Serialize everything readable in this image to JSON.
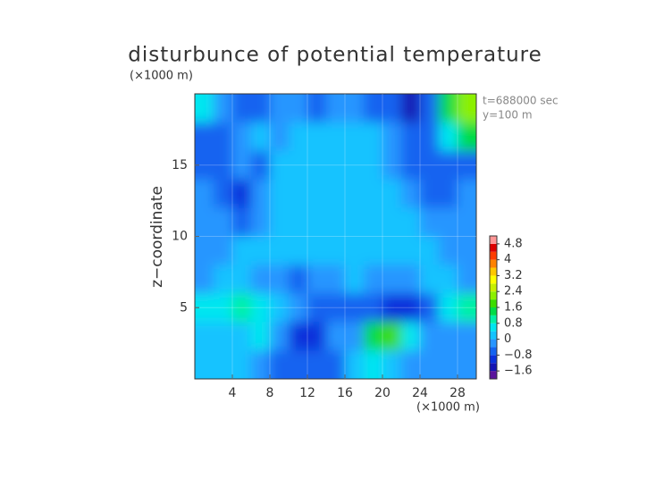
{
  "chart_data": {
    "type": "heatmap",
    "title": "disturbunce of potential temperature",
    "y_unit": "(×1000 m)",
    "x_unit": "(×1000 m)",
    "ylabel": "z−coordinate",
    "annotations": [
      "t=688000 sec",
      "y=100 m"
    ],
    "x": [
      1,
      3,
      5,
      7,
      9,
      11,
      13,
      15,
      17,
      19,
      21,
      23,
      25,
      27,
      29
    ],
    "y": [
      19,
      17,
      15,
      13,
      11,
      9,
      7,
      5,
      3,
      1
    ],
    "z": [
      [
        0.4,
        -0.2,
        -0.8,
        -0.6,
        -0.4,
        -0.4,
        -0.6,
        -0.4,
        -0.4,
        -0.6,
        -0.8,
        -1.4,
        -0.8,
        1.4,
        2.0
      ],
      [
        -0.6,
        -0.6,
        -0.3,
        0.0,
        -0.2,
        0.1,
        0.2,
        0.2,
        0.2,
        0.1,
        -0.4,
        -0.6,
        -0.7,
        0.6,
        1.2
      ],
      [
        -0.6,
        -0.5,
        -0.4,
        -0.6,
        0.1,
        0.1,
        0.1,
        0.1,
        0.1,
        0.0,
        -0.2,
        -0.6,
        -0.8,
        -0.8,
        -0.7
      ],
      [
        -0.4,
        -0.6,
        -0.9,
        -0.4,
        0.0,
        0.0,
        0.1,
        0.0,
        0.0,
        0.0,
        0.0,
        -0.2,
        -0.5,
        -0.5,
        -0.4
      ],
      [
        -0.2,
        -0.3,
        -0.6,
        -0.2,
        0.0,
        0.0,
        0.0,
        0.1,
        0.0,
        0.0,
        0.0,
        0.0,
        -0.1,
        -0.3,
        -0.4
      ],
      [
        -0.2,
        -0.1,
        0.0,
        0.1,
        0.0,
        0.1,
        0.2,
        0.3,
        0.1,
        0.1,
        0.0,
        0.0,
        0.0,
        -0.1,
        -0.3
      ],
      [
        -0.2,
        0.0,
        0.1,
        -0.2,
        -0.4,
        -0.5,
        -0.3,
        -0.1,
        0.0,
        -0.2,
        -0.3,
        -0.2,
        0.0,
        0.1,
        -0.1
      ],
      [
        0.4,
        0.6,
        0.8,
        0.5,
        0.0,
        -0.3,
        -0.6,
        -0.8,
        -0.6,
        -0.8,
        -1.0,
        -1.2,
        -0.6,
        0.4,
        0.8
      ],
      [
        0.2,
        0.2,
        0.3,
        0.5,
        -0.4,
        -0.9,
        -1.0,
        -0.4,
        -0.3,
        1.2,
        1.6,
        0.6,
        -0.4,
        -0.4,
        -0.3
      ],
      [
        0.0,
        0.0,
        0.0,
        -0.3,
        -0.8,
        -0.8,
        -0.7,
        -0.5,
        0.3,
        0.4,
        0.2,
        -0.2,
        -0.3,
        -0.2,
        -0.2
      ]
    ],
    "xlim": [
      0,
      30
    ],
    "ylim": [
      0,
      20
    ],
    "xticks": [
      4,
      8,
      12,
      16,
      20,
      24,
      28
    ],
    "yticks": [
      5,
      10,
      15
    ],
    "colorbar": {
      "levels": [
        -2.0,
        -1.6,
        -1.2,
        -0.8,
        -0.4,
        0,
        0.4,
        0.8,
        1.2,
        1.6,
        2.0,
        2.4,
        2.8,
        3.2,
        3.6,
        4.0,
        4.4,
        4.8,
        5.2
      ],
      "colors": [
        "#5a149c",
        "#1414b4",
        "#0a32dc",
        "#1464f0",
        "#2896ff",
        "#14c3ff",
        "#00e6f0",
        "#00f0a5",
        "#00dc46",
        "#3cdc00",
        "#8cf000",
        "#c8f000",
        "#ffff00",
        "#ffc800",
        "#ff8200",
        "#ff3c00",
        "#dc0000",
        "#ff9696"
      ],
      "ticks": [
        {
          "value": -1.6,
          "label": "−1.6"
        },
        {
          "value": -0.8,
          "label": "−0.8"
        },
        0,
        0.8,
        1.6,
        2.4,
        3.2,
        4,
        4.8
      ]
    }
  }
}
